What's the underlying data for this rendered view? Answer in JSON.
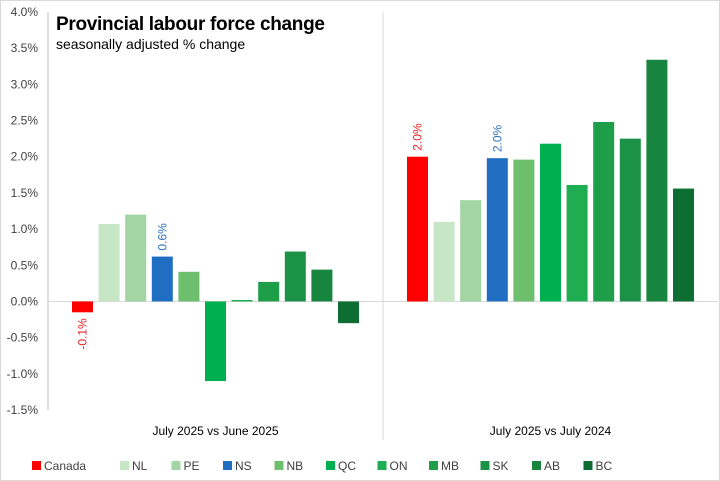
{
  "chart_data": {
    "type": "bar",
    "title": "Provincial labour force change",
    "subtitle": "seasonally adjusted % change",
    "xlabel": "",
    "ylabel": "",
    "ylim": [
      -1.5,
      4.0
    ],
    "yticks": [
      -1.5,
      -1.0,
      -0.5,
      0.0,
      0.5,
      1.0,
      1.5,
      2.0,
      2.5,
      3.0,
      3.5,
      4.0
    ],
    "ytick_labels": [
      "-1.5%",
      "-1.0%",
      "-0.5%",
      "0.0%",
      "0.5%",
      "1.0%",
      "1.5%",
      "2.0%",
      "2.5%",
      "3.0%",
      "3.5%",
      "4.0%"
    ],
    "grid": false,
    "legend_position": "bottom",
    "categories": [
      "July 2025 vs June 2025",
      "July 2025 vs July 2024"
    ],
    "series": [
      {
        "name": "Canada",
        "color": "#ff0000",
        "values": [
          -0.15,
          2.0
        ],
        "labels": [
          "-0.1%",
          "2.0%"
        ],
        "label_color": "#e8252a"
      },
      {
        "name": "NL",
        "color": "#c6e6c6",
        "values": [
          1.07,
          1.1
        ],
        "labels": [
          "",
          ""
        ]
      },
      {
        "name": "PE",
        "color": "#a3d4a3",
        "values": [
          1.2,
          1.4
        ],
        "labels": [
          "",
          ""
        ]
      },
      {
        "name": "NS",
        "color": "#1f6ec2",
        "values": [
          0.62,
          1.98
        ],
        "labels": [
          "0.6%",
          "2.0%"
        ],
        "label_color": "#2f74c0"
      },
      {
        "name": "NB",
        "color": "#6dbf6d",
        "values": [
          0.41,
          1.96
        ],
        "labels": [
          "",
          ""
        ]
      },
      {
        "name": "QC",
        "color": "#00b050",
        "values": [
          -1.1,
          2.18
        ],
        "labels": [
          "",
          ""
        ]
      },
      {
        "name": "ON",
        "color": "#1fad52",
        "values": [
          0.02,
          1.61
        ],
        "labels": [
          "",
          ""
        ]
      },
      {
        "name": "MB",
        "color": "#1e9e49",
        "values": [
          0.27,
          2.48
        ],
        "labels": [
          "",
          ""
        ]
      },
      {
        "name": "SK",
        "color": "#1b9245",
        "values": [
          0.69,
          2.25
        ],
        "labels": [
          "",
          ""
        ]
      },
      {
        "name": "AB",
        "color": "#17853d",
        "values": [
          0.44,
          3.34
        ],
        "labels": [
          "",
          ""
        ]
      },
      {
        "name": "BC",
        "color": "#0e6e32",
        "values": [
          -0.3,
          1.56
        ],
        "labels": [
          "",
          ""
        ]
      }
    ]
  }
}
